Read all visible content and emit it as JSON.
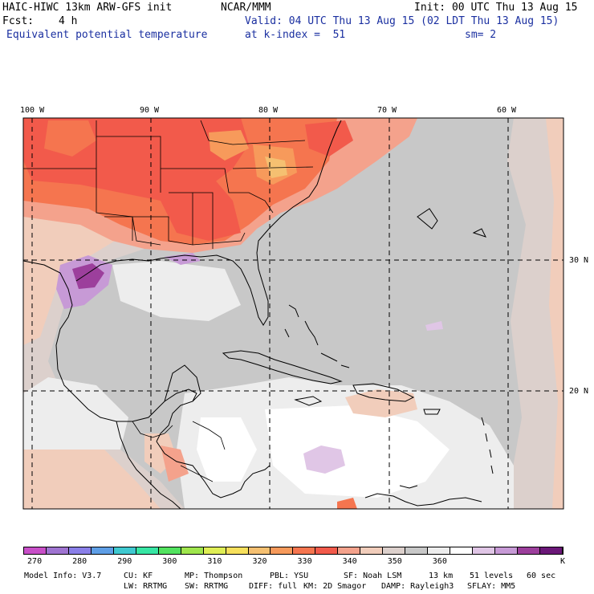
{
  "header": {
    "model": "HAIC-HIWC 13km ARW-GFS init",
    "org": "NCAR/MMM",
    "init": "Init: 00 UTC Thu 13 Aug 15",
    "fcst_label": "Fcst:",
    "fcst_value": "4 h",
    "valid": "Valid: 04 UTC Thu 13 Aug 15 (02 LDT Thu 13 Aug 15)",
    "field": "Equivalent potential temperature",
    "level": "at k-index =  51",
    "smoothing": "sm= 2"
  },
  "map": {
    "lon_labels": [
      "100 W",
      "90 W",
      "80 W",
      "70 W",
      "60 W"
    ],
    "lat_labels": [
      "30 N",
      "20 N"
    ]
  },
  "colorbar": {
    "unit": "K",
    "tick_labels": [
      "270",
      "280",
      "290",
      "300",
      "310",
      "320",
      "330",
      "340",
      "350",
      "360"
    ],
    "colors": [
      "#c84fc8",
      "#9f74d1",
      "#8a7fe8",
      "#5e9ee6",
      "#3fc9d0",
      "#37e6a4",
      "#52e35f",
      "#9fe64d",
      "#dfee55",
      "#f7e05c",
      "#f5c071",
      "#f79a5b",
      "#f5754f",
      "#f25a4b",
      "#f4a28c",
      "#f1cdbb",
      "#dcd0cc",
      "#c8c8c8",
      "#ededed",
      "#ffffff",
      "#e0c6e6",
      "#c79ad6",
      "#9c3f9c",
      "#6b1878"
    ]
  },
  "footer": {
    "line1": [
      "Model Info: V3.7",
      "CU: KF",
      "MP: Thompson",
      "PBL: YSU",
      "SF: Noah LSM",
      "13 km",
      "51 levels",
      "60 sec"
    ],
    "line2": [
      "LW: RRTMG",
      "SW: RRTMG",
      "DIFF: full",
      "KM: 2D Smagor",
      "DAMP: Rayleigh3",
      "SFLAY: MM5"
    ]
  }
}
